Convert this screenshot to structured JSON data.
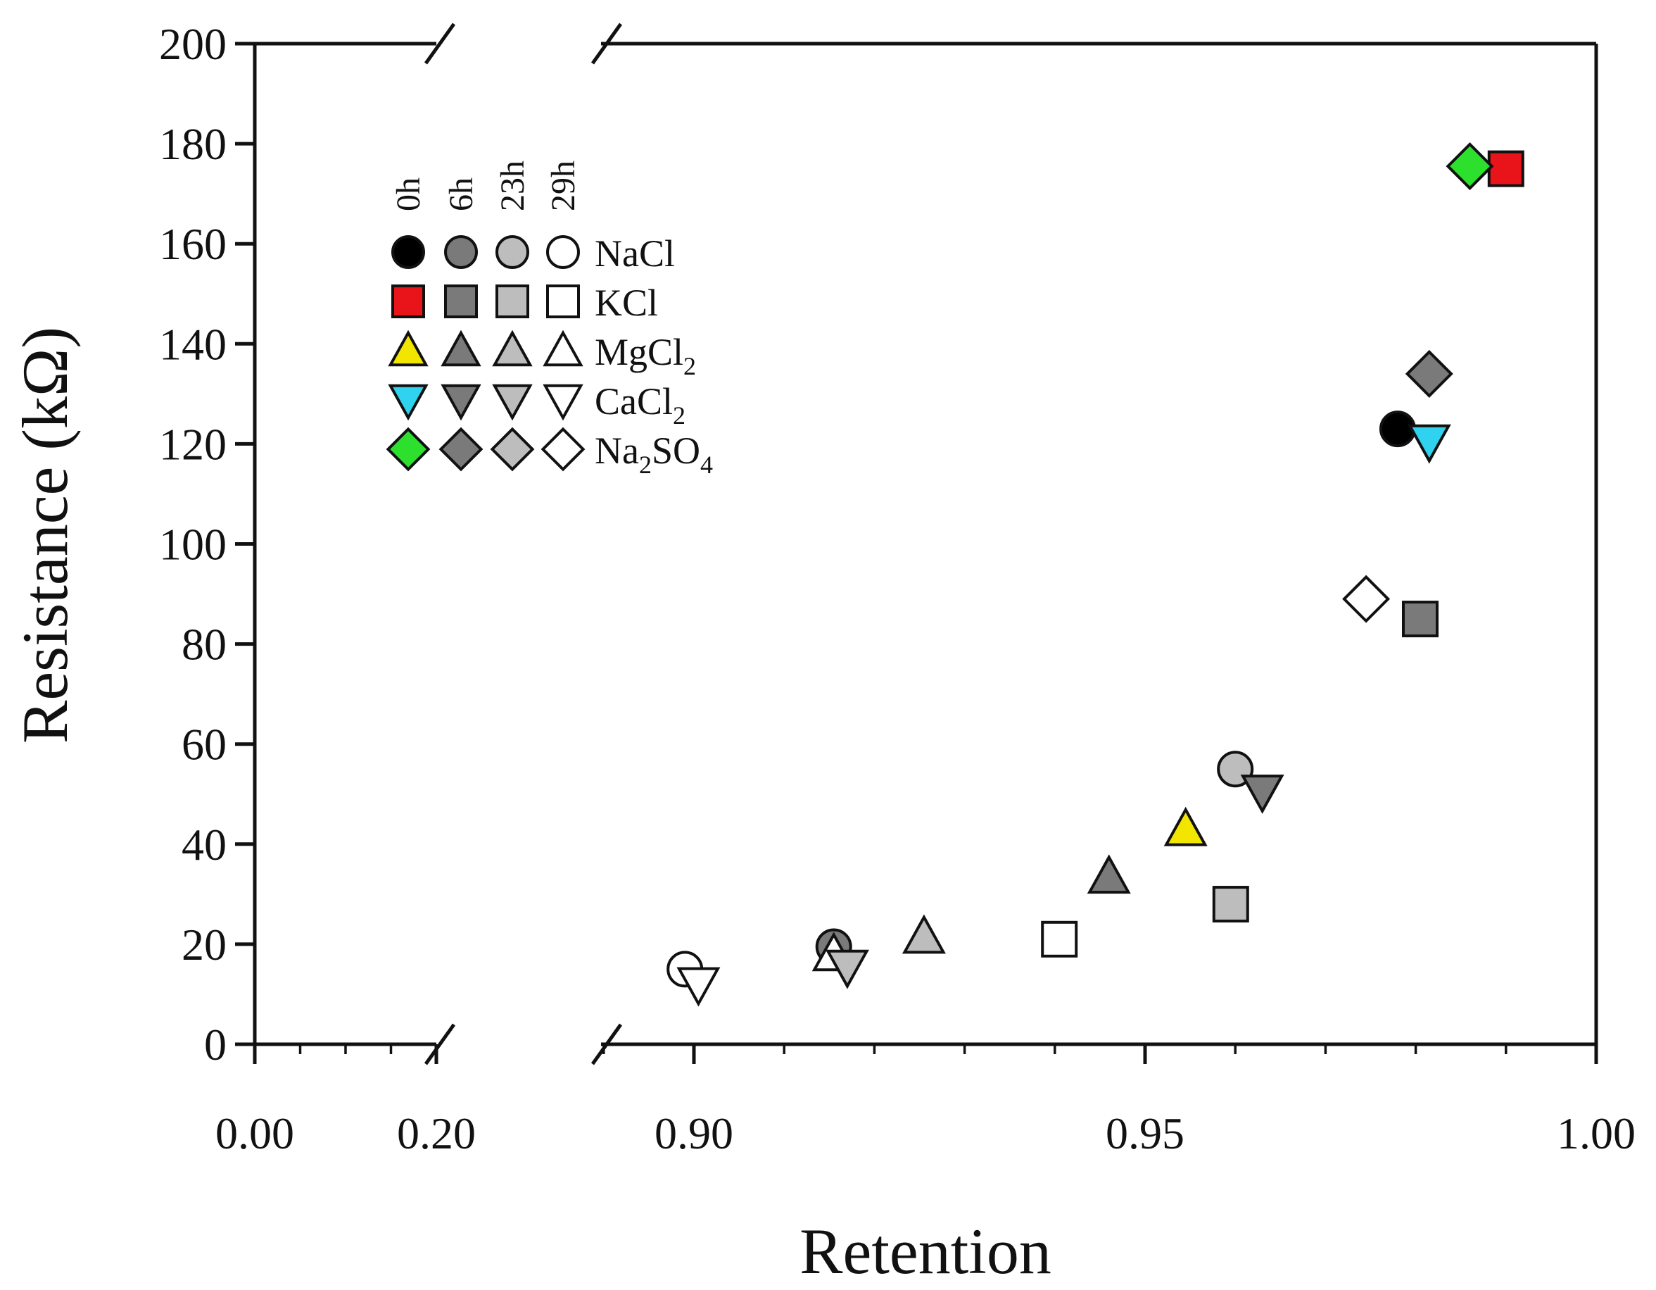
{
  "chart_data": {
    "type": "scatter",
    "title": "",
    "xlabel": "Retention",
    "ylabel": "Resistance (kΩ)",
    "xlim": [
      0.0,
      1.0
    ],
    "x_break": {
      "from": 0.2,
      "to": 0.9
    },
    "ylim": [
      0,
      200
    ],
    "grid": false,
    "x_ticks": [
      {
        "value": 0.0,
        "label": "0.00"
      },
      {
        "value": 0.2,
        "label": "0.20"
      },
      {
        "value": 0.9,
        "label": "0.90"
      },
      {
        "value": 0.95,
        "label": "0.95"
      },
      {
        "value": 1.0,
        "label": "1.00"
      }
    ],
    "y_ticks": [
      {
        "value": 0,
        "label": "0"
      },
      {
        "value": 20,
        "label": "20"
      },
      {
        "value": 40,
        "label": "40"
      },
      {
        "value": 60,
        "label": "60"
      },
      {
        "value": 80,
        "label": "80"
      },
      {
        "value": 100,
        "label": "100"
      },
      {
        "value": 120,
        "label": "120"
      },
      {
        "value": 140,
        "label": "140"
      },
      {
        "value": 160,
        "label": "160"
      },
      {
        "value": 180,
        "label": "180"
      },
      {
        "value": 200,
        "label": "200"
      }
    ],
    "legend": {
      "placement": "top-left",
      "time_labels": [
        "0h",
        "6h",
        "23h",
        "29h"
      ],
      "rows": [
        {
          "salt": "NaCl",
          "label_main": "NaCl",
          "label_sub": "",
          "label_tail": ""
        },
        {
          "salt": "KCl",
          "label_main": "KCl",
          "label_sub": "",
          "label_tail": ""
        },
        {
          "salt": "MgCl2",
          "label_main": "MgCl",
          "label_sub": "2",
          "label_tail": ""
        },
        {
          "salt": "CaCl2",
          "label_main": "CaCl",
          "label_sub": "2",
          "label_tail": ""
        },
        {
          "salt": "Na2SO4",
          "label_main": "Na",
          "label_sub": "2",
          "label_tail": "SO",
          "label_sub2": "4"
        }
      ]
    },
    "marker_by_salt": {
      "NaCl": "circle",
      "KCl": "square",
      "MgCl2": "triangle-up",
      "CaCl2": "triangle-down",
      "Na2SO4": "diamond"
    },
    "fill_by_time": {
      "0h": {
        "NaCl": "#000000",
        "KCl": "#e8141a",
        "MgCl2": "#f2e600",
        "CaCl2": "#2fd3f0",
        "Na2SO4": "#2ee02e"
      },
      "6h": "#7a7a7a",
      "23h": "#bdbdbd",
      "29h": "#ffffff"
    },
    "series": [
      {
        "salt": "NaCl",
        "time": "0h",
        "x": 0.978,
        "y": 123
      },
      {
        "salt": "NaCl",
        "time": "23h",
        "x": 0.96,
        "y": 55
      },
      {
        "salt": "NaCl",
        "time": "6h",
        "x": 0.9155,
        "y": 19.5
      },
      {
        "salt": "NaCl",
        "time": "29h",
        "x": 0.899,
        "y": 15
      },
      {
        "salt": "KCl",
        "time": "0h",
        "x": 0.99,
        "y": 175
      },
      {
        "salt": "KCl",
        "time": "6h",
        "x": 0.9805,
        "y": 85
      },
      {
        "salt": "KCl",
        "time": "23h",
        "x": 0.9595,
        "y": 28
      },
      {
        "salt": "KCl",
        "time": "29h",
        "x": 0.9405,
        "y": 21
      },
      {
        "salt": "MgCl2",
        "time": "0h",
        "x": 0.9545,
        "y": 43
      },
      {
        "salt": "MgCl2",
        "time": "6h",
        "x": 0.946,
        "y": 33.5
      },
      {
        "salt": "MgCl2",
        "time": "23h",
        "x": 0.9255,
        "y": 21.5
      },
      {
        "salt": "MgCl2",
        "time": "29h",
        "x": 0.9155,
        "y": 18
      },
      {
        "salt": "CaCl2",
        "time": "0h",
        "x": 0.9815,
        "y": 120.5
      },
      {
        "salt": "CaCl2",
        "time": "6h",
        "x": 0.963,
        "y": 50.5
      },
      {
        "salt": "CaCl2",
        "time": "23h",
        "x": 0.917,
        "y": 15.5
      },
      {
        "salt": "CaCl2",
        "time": "29h",
        "x": 0.9005,
        "y": 12
      },
      {
        "salt": "Na2SO4",
        "time": "0h",
        "x": 0.986,
        "y": 175.5
      },
      {
        "salt": "Na2SO4",
        "time": "6h",
        "x": 0.9815,
        "y": 134
      },
      {
        "salt": "Na2SO4",
        "time": "29h",
        "x": 0.9745,
        "y": 89
      }
    ]
  }
}
